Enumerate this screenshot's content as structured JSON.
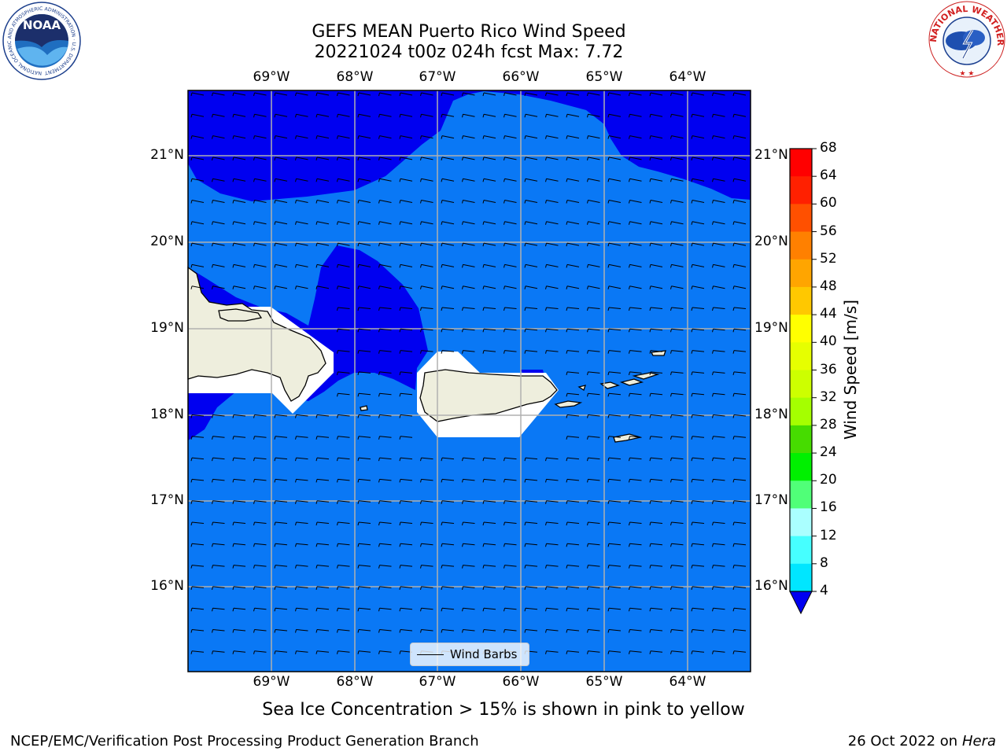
{
  "title": {
    "line1": "GEFS MEAN Puerto Rico Wind Speed",
    "line2": "20221024 t00z 024h fcst   Max: 7.72"
  },
  "map": {
    "lon_ticks": [
      "69°W",
      "68°W",
      "67°W",
      "66°W",
      "65°W",
      "64°W"
    ],
    "lat_ticks": [
      "21°N",
      "20°N",
      "19°N",
      "18°N",
      "17°N",
      "16°N"
    ],
    "legend_label": "Wind Barbs",
    "colors": {
      "land": "#eeeedd",
      "low_wind": "#0000f0",
      "mid_wind": "#0a78f5",
      "mask": "#ffffff",
      "grid": "#b0b0b0"
    }
  },
  "colorbar": {
    "title": "Wind Speed [m/s]",
    "ticks": [
      "68",
      "64",
      "60",
      "56",
      "52",
      "48",
      "44",
      "40",
      "36",
      "32",
      "28",
      "24",
      "20",
      "16",
      "12",
      "8",
      "4"
    ],
    "colors": [
      "#ff0000",
      "#ff2000",
      "#ff5000",
      "#ff8000",
      "#ffa500",
      "#ffc800",
      "#ffff00",
      "#e6ff00",
      "#cdff00",
      "#a5ff00",
      "#46dc00",
      "#00f000",
      "#50ff78",
      "#aaffff",
      "#46ffff",
      "#00e6ff",
      "#0a78f5"
    ]
  },
  "note": "Sea Ice Concentration > 15% is shown in pink to yellow",
  "footer": {
    "left": "NCEP/EMC/Verification Post Processing Product Generation Branch",
    "date": "26 Oct 2022 on ",
    "machine": "Hera"
  },
  "logos": {
    "noaa_text": "NOAA",
    "noaa_ring": "NATIONAL OCEANIC AND ATMOSPHERIC ADMINISTRATION · U.S. DEPARTMENT OF COMMERCE",
    "nws_ring": "NATIONAL WEATHER SERVICE"
  }
}
